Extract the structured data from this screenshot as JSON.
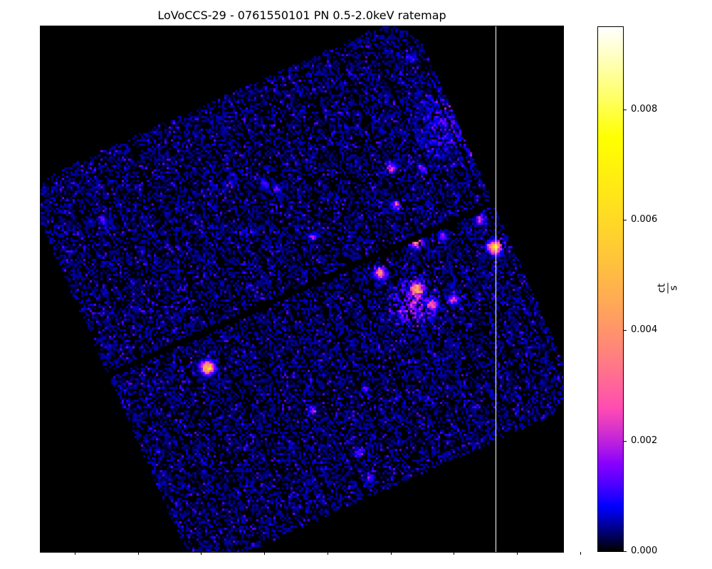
{
  "chart_data": {
    "type": "heatmap",
    "title": "LoVoCCS-29 - 0761550101 PN 0.5-2.0keV ratemap",
    "xlabel": "",
    "ylabel": "",
    "colormap": "gnuplot2",
    "colorbar": {
      "label_numerator": "ct",
      "label_denominator": "s",
      "scale": "asinh",
      "range": [
        0.0,
        0.0095
      ],
      "ticks": [
        {
          "value": 0.008,
          "label": "0.008"
        },
        {
          "value": 0.006,
          "label": "0.006"
        },
        {
          "value": 0.004,
          "label": "0.004"
        },
        {
          "value": 0.002,
          "label": "0.002"
        },
        {
          "value": 0.0,
          "label": "0.000"
        }
      ]
    },
    "vertical_line_color": "#ffffff",
    "background_color": "#000000",
    "sources": [
      {
        "x": 0.65,
        "y": 0.47,
        "peak": 0.0035,
        "sigma": 1.8
      },
      {
        "x": 0.72,
        "y": 0.41,
        "peak": 0.004,
        "sigma": 1.8
      },
      {
        "x": 0.72,
        "y": 0.5,
        "peak": 0.005,
        "sigma": 1.8
      },
      {
        "x": 0.32,
        "y": 0.65,
        "peak": 0.006,
        "sigma": 2.0
      },
      {
        "x": 0.87,
        "y": 0.42,
        "peak": 0.006,
        "sigma": 2.0
      },
      {
        "x": 0.75,
        "y": 0.53,
        "peak": 0.003,
        "sigma": 1.6
      },
      {
        "x": 0.79,
        "y": 0.52,
        "peak": 0.0025,
        "sigma": 1.6
      },
      {
        "x": 0.84,
        "y": 0.37,
        "peak": 0.002,
        "sigma": 1.5
      },
      {
        "x": 0.83,
        "y": 0.24,
        "peak": 0.0025,
        "sigma": 1.6
      },
      {
        "x": 0.67,
        "y": 0.27,
        "peak": 0.0025,
        "sigma": 1.6
      },
      {
        "x": 0.68,
        "y": 0.34,
        "peak": 0.002,
        "sigma": 1.5
      },
      {
        "x": 0.45,
        "y": 0.31,
        "peak": 0.0015,
        "sigma": 1.4
      },
      {
        "x": 0.36,
        "y": 0.3,
        "peak": 0.0018,
        "sigma": 1.4
      },
      {
        "x": 0.52,
        "y": 0.4,
        "peak": 0.0014,
        "sigma": 1.4
      },
      {
        "x": 0.77,
        "y": 0.4,
        "peak": 0.0016,
        "sigma": 1.4
      },
      {
        "x": 0.52,
        "y": 0.73,
        "peak": 0.0015,
        "sigma": 1.4
      },
      {
        "x": 0.62,
        "y": 0.69,
        "peak": 0.0012,
        "sigma": 1.3
      },
      {
        "x": 0.18,
        "y": 0.81,
        "peak": 0.0018,
        "sigma": 1.4
      },
      {
        "x": 0.63,
        "y": 0.86,
        "peak": 0.0012,
        "sigma": 1.3
      },
      {
        "x": 0.71,
        "y": 0.06,
        "peak": 0.0012,
        "sigma": 1.3
      },
      {
        "x": 0.4,
        "y": 0.39,
        "peak": 0.0014,
        "sigma": 1.3
      },
      {
        "x": 0.12,
        "y": 0.37,
        "peak": 0.0012,
        "sigma": 1.3
      },
      {
        "x": 0.61,
        "y": 0.81,
        "peak": 0.0012,
        "sigma": 1.3
      },
      {
        "x": 0.73,
        "y": 0.27,
        "peak": 0.0014,
        "sigma": 1.3
      },
      {
        "x": 0.43,
        "y": 0.3,
        "peak": 0.0012,
        "sigma": 1.3
      }
    ],
    "extended_emission": [
      {
        "x": 0.71,
        "y": 0.53,
        "peak": 0.0014,
        "sigma": 8
      },
      {
        "x": 0.78,
        "y": 0.18,
        "peak": 0.0008,
        "sigma": 13
      }
    ]
  }
}
